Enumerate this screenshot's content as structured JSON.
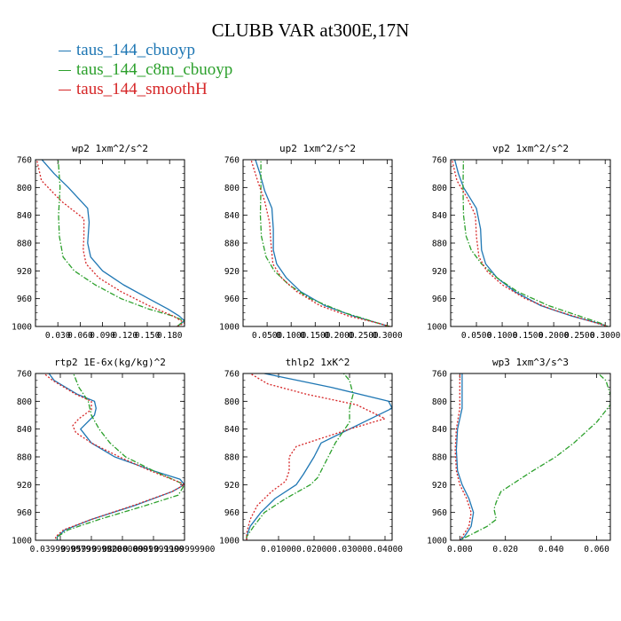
{
  "title": "CLUBB VAR at300E,17N",
  "colors": {
    "blue": "#1f77b4",
    "green": "#2ca02c",
    "red": "#d62728"
  },
  "legend": [
    {
      "label": "taus_144_cbuoyp",
      "color": "#1f77b4"
    },
    {
      "label": "taus_144_c8m_cbuoyp",
      "color": "#2ca02c"
    },
    {
      "label": "taus_144_smoothH",
      "color": "#d62728"
    }
  ],
  "chart_data": [
    {
      "type": "line",
      "title": "wp2   1xm^2/s^2",
      "xlim": [
        0,
        0.2
      ],
      "ylim": [
        760,
        1000
      ],
      "xticks": [
        0.03,
        0.06,
        0.09,
        0.12,
        0.15,
        0.18
      ],
      "xtick_labels": [
        "0.030",
        "0.060",
        "0.090",
        "0.120",
        "0.150",
        "0.180"
      ],
      "yticks": [
        760,
        800,
        840,
        880,
        920,
        960,
        1000
      ],
      "ytick_labels": [
        "760",
        "800",
        "840",
        "880",
        "920",
        "960",
        "1000"
      ],
      "series": [
        {
          "name": "taus_144_cbuoyp",
          "color": "#1f77b4",
          "dash": "",
          "p": [
            752,
            780,
            800,
            830,
            850,
            880,
            900,
            920,
            940,
            960,
            975,
            985,
            992,
            1000
          ],
          "x": [
            0.002,
            0.025,
            0.044,
            0.07,
            0.072,
            0.07,
            0.074,
            0.09,
            0.118,
            0.152,
            0.178,
            0.193,
            0.2,
            0.19
          ]
        },
        {
          "name": "taus_144_c8m_cbuoyp",
          "color": "#2ca02c",
          "dash": "6,2,1.5,2",
          "p": [
            752,
            800,
            840,
            870,
            900,
            920,
            940,
            960,
            975,
            985,
            992,
            1000
          ],
          "x": [
            0.03,
            0.033,
            0.031,
            0.032,
            0.037,
            0.052,
            0.08,
            0.115,
            0.152,
            0.185,
            0.199,
            0.19
          ]
        },
        {
          "name": "taus_144_smoothH",
          "color": "#d62728",
          "dash": "2,2",
          "p": [
            752,
            790,
            820,
            845,
            870,
            890,
            910,
            930,
            950,
            970,
            985,
            995,
            1000
          ],
          "x": [
            0.0,
            0.008,
            0.035,
            0.065,
            0.065,
            0.064,
            0.068,
            0.085,
            0.115,
            0.152,
            0.185,
            0.2,
            0.19
          ]
        }
      ]
    },
    {
      "type": "line",
      "title": "up2   1xm^2/s^2",
      "xlim": [
        0,
        0.31
      ],
      "ylim": [
        760,
        1000
      ],
      "xticks": [
        0.05,
        0.1,
        0.15,
        0.2,
        0.25,
        0.3
      ],
      "xtick_labels": [
        "0.0500",
        "0.1000",
        "0.1500",
        "0.2000",
        "0.2500",
        "0.3000"
      ],
      "yticks": [
        760,
        800,
        840,
        880,
        920,
        960,
        1000
      ],
      "ytick_labels": [
        "760",
        "800",
        "840",
        "880",
        "920",
        "960",
        "1000"
      ],
      "series": [
        {
          "name": "taus_144_cbuoyp",
          "color": "#1f77b4",
          "dash": "",
          "p": [
            752,
            780,
            805,
            830,
            860,
            890,
            910,
            930,
            950,
            970,
            985,
            995,
            1000
          ],
          "x": [
            0.022,
            0.035,
            0.045,
            0.06,
            0.063,
            0.063,
            0.07,
            0.09,
            0.12,
            0.17,
            0.23,
            0.28,
            0.305
          ]
        },
        {
          "name": "taus_144_c8m_cbuoyp",
          "color": "#2ca02c",
          "dash": "6,2,1.5,2",
          "p": [
            752,
            800,
            840,
            870,
            900,
            920,
            940,
            960,
            980,
            995,
            1000
          ],
          "x": [
            0.037,
            0.037,
            0.036,
            0.038,
            0.048,
            0.065,
            0.095,
            0.14,
            0.21,
            0.28,
            0.305
          ]
        },
        {
          "name": "taus_144_smoothH",
          "color": "#d62728",
          "dash": "2,2",
          "p": [
            752,
            790,
            820,
            850,
            880,
            910,
            930,
            950,
            970,
            985,
            995,
            1000
          ],
          "x": [
            0.013,
            0.03,
            0.045,
            0.055,
            0.058,
            0.062,
            0.08,
            0.112,
            0.16,
            0.22,
            0.28,
            0.305
          ]
        }
      ]
    },
    {
      "type": "line",
      "title": "vp2   1xm^2/s^2",
      "xlim": [
        0,
        0.31
      ],
      "ylim": [
        760,
        1000
      ],
      "xticks": [
        0.05,
        0.1,
        0.15,
        0.2,
        0.25,
        0.3
      ],
      "xtick_labels": [
        "0.0500",
        "0.1000",
        "0.1500",
        "0.2000",
        "0.2500",
        "0.3000"
      ],
      "yticks": [
        760,
        800,
        840,
        880,
        920,
        960,
        1000
      ],
      "ytick_labels": [
        "760",
        "800",
        "840",
        "880",
        "920",
        "960",
        "1000"
      ],
      "series": [
        {
          "name": "taus_144_cbuoyp",
          "color": "#1f77b4",
          "dash": "",
          "p": [
            752,
            780,
            800,
            830,
            860,
            890,
            910,
            930,
            950,
            970,
            985,
            995,
            1000
          ],
          "x": [
            0.005,
            0.015,
            0.025,
            0.05,
            0.058,
            0.06,
            0.068,
            0.09,
            0.125,
            0.175,
            0.235,
            0.285,
            0.305
          ]
        },
        {
          "name": "taus_144_c8m_cbuoyp",
          "color": "#2ca02c",
          "dash": "6,2,1.5,2",
          "p": [
            752,
            800,
            840,
            870,
            890,
            910,
            930,
            950,
            970,
            985,
            995,
            1000
          ],
          "x": [
            0.025,
            0.024,
            0.025,
            0.03,
            0.04,
            0.06,
            0.09,
            0.13,
            0.19,
            0.25,
            0.29,
            0.305
          ]
        },
        {
          "name": "taus_144_smoothH",
          "color": "#d62728",
          "dash": "2,2",
          "p": [
            752,
            790,
            815,
            840,
            870,
            900,
            920,
            940,
            960,
            975,
            990,
            1000
          ],
          "x": [
            0.0,
            0.012,
            0.032,
            0.048,
            0.05,
            0.055,
            0.07,
            0.1,
            0.145,
            0.195,
            0.26,
            0.305
          ]
        }
      ]
    },
    {
      "type": "line",
      "title": "rtp2   1E-6x(kg/kg)^2",
      "xlim": [
        0.024,
        0.12
      ],
      "ylim": [
        760,
        1000
      ],
      "xticks": [
        0.04,
        0.06,
        0.08,
        0.1,
        0.12
      ],
      "xtick_labels": [
        "0.0399999979",
        "0.0599999920",
        "0.0800000001",
        "0.0999999900",
        "0.1199999900"
      ],
      "yticks": [
        760,
        800,
        840,
        880,
        920,
        960,
        1000
      ],
      "ytick_labels": [
        "760",
        "800",
        "840",
        "880",
        "920",
        "960",
        "1000"
      ],
      "series": [
        {
          "name": "taus_144_cbuoyp",
          "color": "#1f77b4",
          "dash": "",
          "p": [
            752,
            770,
            790,
            800,
            810,
            820,
            840,
            860,
            880,
            900,
            912,
            920,
            930,
            950,
            970,
            985,
            995,
            1000
          ],
          "x": [
            0.03,
            0.036,
            0.051,
            0.062,
            0.063,
            0.062,
            0.053,
            0.06,
            0.075,
            0.1,
            0.117,
            0.12,
            0.112,
            0.088,
            0.06,
            0.043,
            0.038,
            0.038
          ]
        },
        {
          "name": "taus_144_c8m_cbuoyp",
          "color": "#2ca02c",
          "dash": "6,2,1.5,2",
          "p": [
            752,
            780,
            800,
            820,
            840,
            860,
            880,
            900,
            920,
            935,
            950,
            970,
            985,
            995,
            1000
          ],
          "x": [
            0.047,
            0.052,
            0.058,
            0.06,
            0.065,
            0.072,
            0.082,
            0.1,
            0.12,
            0.116,
            0.095,
            0.065,
            0.045,
            0.038,
            0.038
          ]
        },
        {
          "name": "taus_144_smoothH",
          "color": "#d62728",
          "dash": "2,2",
          "p": [
            752,
            770,
            790,
            800,
            812,
            825,
            835,
            845,
            860,
            880,
            900,
            915,
            920,
            930,
            950,
            970,
            985,
            995,
            1000
          ],
          "x": [
            0.025,
            0.035,
            0.05,
            0.06,
            0.06,
            0.052,
            0.048,
            0.05,
            0.06,
            0.078,
            0.098,
            0.115,
            0.12,
            0.112,
            0.087,
            0.06,
            0.042,
            0.037,
            0.037
          ]
        }
      ]
    },
    {
      "type": "line",
      "title": "thlp2   1xK^2",
      "xlim": [
        0,
        0.042
      ],
      "ylim": [
        760,
        1000
      ],
      "xticks": [
        0.01,
        0.02,
        0.03,
        0.04
      ],
      "xtick_labels": [
        "0.01000",
        "0.02000",
        "0.03000",
        "0.04000"
      ],
      "yticks": [
        760,
        800,
        840,
        880,
        920,
        960,
        1000
      ],
      "ytick_labels": [
        "760",
        "800",
        "840",
        "880",
        "920",
        "960",
        "1000"
      ],
      "series": [
        {
          "name": "taus_144_cbuoyp",
          "color": "#1f77b4",
          "dash": "",
          "p": [
            752,
            760,
            780,
            800,
            810,
            830,
            860,
            880,
            905,
            920,
            940,
            960,
            980,
            995,
            1000
          ],
          "x": [
            0.001,
            0.006,
            0.025,
            0.041,
            0.042,
            0.034,
            0.022,
            0.02,
            0.017,
            0.015,
            0.009,
            0.005,
            0.002,
            0.001,
            0.001
          ]
        },
        {
          "name": "taus_144_c8m_cbuoyp",
          "color": "#2ca02c",
          "dash": "6,2,1.5,2",
          "p": [
            752,
            770,
            790,
            810,
            830,
            860,
            890,
            910,
            920,
            940,
            960,
            980,
            995,
            1000
          ],
          "x": [
            0.027,
            0.03,
            0.031,
            0.03,
            0.03,
            0.026,
            0.023,
            0.021,
            0.019,
            0.012,
            0.006,
            0.003,
            0.001,
            0.001
          ]
        },
        {
          "name": "taus_144_smoothH",
          "color": "#d62728",
          "dash": "2,2",
          "p": [
            752,
            760,
            775,
            790,
            805,
            825,
            840,
            865,
            880,
            900,
            915,
            930,
            950,
            970,
            990,
            1000
          ],
          "x": [
            0.0,
            0.002,
            0.007,
            0.018,
            0.032,
            0.04,
            0.03,
            0.015,
            0.013,
            0.013,
            0.012,
            0.008,
            0.004,
            0.002,
            0.001,
            0.001
          ]
        }
      ]
    },
    {
      "type": "line",
      "title": "wp3   1xm^3/s^3",
      "xlim": [
        -0.004,
        0.066
      ],
      "ylim": [
        760,
        1000
      ],
      "xticks": [
        0.0,
        0.02,
        0.04,
        0.06
      ],
      "xtick_labels": [
        "0.000",
        "0.020",
        "0.040",
        "0.060"
      ],
      "yticks": [
        760,
        800,
        840,
        880,
        920,
        960,
        1000
      ],
      "ytick_labels": [
        "760",
        "800",
        "840",
        "880",
        "920",
        "960",
        "1000"
      ],
      "series": [
        {
          "name": "taus_144_cbuoyp",
          "color": "#1f77b4",
          "dash": "",
          "p": [
            752,
            780,
            810,
            840,
            870,
            900,
            920,
            940,
            960,
            980,
            995,
            1000
          ],
          "x": [
            0.001,
            0.001,
            0.001,
            -0.001,
            -0.0015,
            -0.001,
            0.001,
            0.004,
            0.006,
            0.005,
            0.002,
            0.0
          ]
        },
        {
          "name": "taus_144_c8m_cbuoyp",
          "color": "#2ca02c",
          "dash": "6,2,1.5,2",
          "p": [
            752,
            770,
            790,
            805,
            830,
            860,
            880,
            900,
            915,
            930,
            945,
            955,
            970,
            980,
            990,
            1000
          ],
          "x": [
            0.058,
            0.064,
            0.066,
            0.066,
            0.06,
            0.05,
            0.042,
            0.032,
            0.025,
            0.018,
            0.016,
            0.015,
            0.016,
            0.012,
            0.006,
            0.0
          ]
        },
        {
          "name": "taus_144_smoothH",
          "color": "#d62728",
          "dash": "2,2",
          "p": [
            752,
            780,
            810,
            840,
            870,
            900,
            920,
            940,
            960,
            980,
            995,
            1000
          ],
          "x": [
            0.0,
            0.0,
            0.0,
            -0.0015,
            -0.002,
            -0.0015,
            0.0,
            0.003,
            0.005,
            0.004,
            0.001,
            0.0
          ]
        }
      ]
    }
  ]
}
